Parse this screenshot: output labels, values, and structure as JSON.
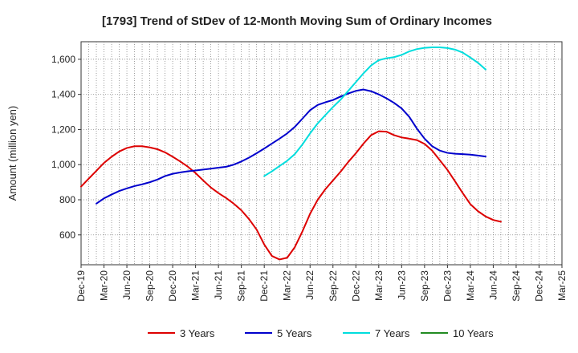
{
  "chart_data": {
    "type": "line",
    "title": "[1793]  Trend of StDev of 12-Month Moving Sum of Ordinary Incomes",
    "xlabel": "",
    "ylabel": "Amount (million yen)",
    "ylim": [
      430,
      1700
    ],
    "yticks": [
      600,
      800,
      1000,
      1200,
      1400,
      1600
    ],
    "ytick_labels": [
      "600",
      "800",
      "1,000",
      "1,200",
      "1,400",
      "1,600"
    ],
    "x_start": "Dec-19",
    "x_end": "Mar-25",
    "xtick_labels": [
      "Dec-19",
      "Mar-20",
      "Jun-20",
      "Sep-20",
      "Dec-20",
      "Mar-21",
      "Jun-21",
      "Sep-21",
      "Dec-21",
      "Mar-22",
      "Jun-22",
      "Sep-22",
      "Dec-22",
      "Mar-23",
      "Jun-23",
      "Sep-23",
      "Dec-23",
      "Mar-24",
      "Jun-24",
      "Sep-24",
      "Dec-24",
      "Mar-25"
    ],
    "grid": true,
    "legend_position": "bottom",
    "series": [
      {
        "name": "3 Years",
        "color": "#dd0000",
        "start_index": 0,
        "values": [
          875,
          920,
          965,
          1010,
          1045,
          1075,
          1095,
          1105,
          1105,
          1098,
          1088,
          1070,
          1045,
          1018,
          988,
          952,
          910,
          870,
          838,
          810,
          778,
          740,
          690,
          630,
          545,
          480,
          460,
          470,
          530,
          620,
          720,
          800,
          860,
          910,
          960,
          1015,
          1065,
          1120,
          1168,
          1190,
          1188,
          1168,
          1155,
          1148,
          1140,
          1118,
          1080,
          1025,
          970,
          905,
          838,
          775,
          735,
          705,
          685,
          675
        ]
      },
      {
        "name": "5 Years",
        "color": "#0000cc",
        "start_index": 2,
        "values": [
          778,
          808,
          830,
          850,
          865,
          878,
          888,
          900,
          915,
          935,
          948,
          956,
          962,
          967,
          972,
          977,
          983,
          988,
          1000,
          1018,
          1040,
          1065,
          1092,
          1120,
          1148,
          1178,
          1215,
          1262,
          1310,
          1340,
          1355,
          1368,
          1388,
          1405,
          1420,
          1428,
          1418,
          1400,
          1378,
          1352,
          1320,
          1272,
          1205,
          1148,
          1105,
          1080,
          1067,
          1062,
          1060,
          1057,
          1052,
          1046
        ]
      },
      {
        "name": "7 Years",
        "color": "#00dddd",
        "start_index": 24,
        "values": [
          935,
          962,
          992,
          1022,
          1060,
          1115,
          1178,
          1235,
          1282,
          1328,
          1370,
          1420,
          1470,
          1520,
          1565,
          1595,
          1606,
          1612,
          1625,
          1645,
          1658,
          1665,
          1668,
          1668,
          1664,
          1655,
          1638,
          1610,
          1580,
          1542
        ]
      },
      {
        "name": "10 Years",
        "color": "#228b22",
        "start_index": 0,
        "values": []
      }
    ]
  }
}
